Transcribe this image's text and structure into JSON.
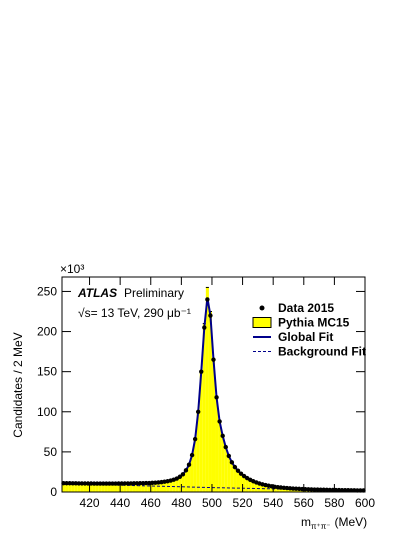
{
  "chart_data": {
    "type": "histogram",
    "y_multiplier": "×10³",
    "experiment": "ATLAS",
    "status": "Preliminary",
    "energy_label": "√s= 13 TeV, 290 μb⁻¹",
    "y_label": "Candidates / 2 MeV",
    "x_label": {
      "main": "m",
      "sub": "π⁺π⁻",
      "unit": "(MeV)"
    },
    "xlim": [
      402,
      600
    ],
    "ylim": [
      0,
      268
    ],
    "xticks": [
      420,
      440,
      460,
      480,
      500,
      520,
      540,
      560,
      580,
      600
    ],
    "yticks": [
      0,
      50,
      100,
      150,
      200,
      250
    ],
    "x": [
      403,
      405,
      407,
      409,
      411,
      413,
      415,
      417,
      419,
      421,
      423,
      425,
      427,
      429,
      431,
      433,
      435,
      437,
      439,
      441,
      443,
      445,
      447,
      449,
      451,
      453,
      455,
      457,
      459,
      461,
      463,
      465,
      467,
      469,
      471,
      473,
      475,
      477,
      479,
      481,
      483,
      485,
      487,
      489,
      491,
      493,
      495,
      497,
      499,
      501,
      503,
      505,
      507,
      509,
      511,
      513,
      515,
      517,
      519,
      521,
      523,
      525,
      527,
      529,
      531,
      533,
      535,
      537,
      539,
      541,
      543,
      545,
      547,
      549,
      551,
      553,
      555,
      557,
      559,
      561,
      563,
      565,
      567,
      569,
      571,
      573,
      575,
      577,
      579,
      581,
      583,
      585,
      587,
      589,
      591,
      593,
      595,
      597,
      599
    ],
    "series": [
      {
        "name": "Data 2015",
        "kind": "points",
        "color": "#000000",
        "values": [
          11.0,
          10.9,
          10.9,
          10.8,
          10.8,
          10.7,
          10.7,
          10.6,
          10.6,
          10.6,
          10.5,
          10.5,
          10.5,
          10.5,
          10.5,
          10.5,
          10.5,
          10.5,
          10.6,
          10.6,
          10.6,
          10.7,
          10.7,
          10.8,
          10.8,
          10.9,
          11.0,
          11.1,
          11.2,
          11.4,
          11.6,
          11.9,
          12.3,
          12.8,
          13.4,
          14.2,
          15.3,
          16.8,
          19.0,
          22,
          27,
          34,
          46,
          66,
          100,
          150,
          205,
          240,
          220,
          165,
          118,
          88,
          70,
          56,
          45,
          37,
          31,
          26.5,
          22.8,
          19.8,
          17.3,
          15.2,
          13.4,
          11.9,
          10.6,
          9.5,
          8.6,
          7.8,
          7.1,
          6.5,
          6.0,
          5.6,
          5.2,
          4.9,
          4.6,
          4.3,
          4.1,
          3.9,
          3.7,
          3.5,
          3.4,
          3.2,
          3.1,
          3.0,
          2.9,
          2.8,
          2.7,
          2.6,
          2.5,
          2.4,
          2.4,
          2.3,
          2.2,
          2.2,
          2.1,
          2.1,
          2.0,
          2.0,
          1.9
        ]
      },
      {
        "name": "Pythia MC15",
        "kind": "hist",
        "color": "#ffff00",
        "values": [
          11.0,
          10.9,
          10.9,
          10.8,
          10.8,
          10.7,
          10.7,
          10.6,
          10.6,
          10.6,
          10.5,
          10.5,
          10.5,
          10.5,
          10.5,
          10.5,
          10.5,
          10.5,
          10.6,
          10.6,
          10.6,
          10.7,
          10.7,
          10.8,
          10.8,
          10.9,
          11.0,
          11.1,
          11.2,
          11.4,
          11.6,
          11.9,
          12.3,
          12.8,
          13.4,
          14.2,
          15.3,
          16.8,
          19.0,
          22,
          27,
          34,
          46,
          66,
          100,
          150,
          210,
          255,
          225,
          165,
          118,
          88,
          70,
          56,
          45,
          37,
          31,
          26.5,
          22.8,
          19.8,
          17.3,
          15.2,
          13.4,
          11.9,
          10.6,
          9.5,
          8.6,
          7.8,
          7.1,
          6.5,
          6.0,
          5.6,
          5.2,
          4.9,
          4.6,
          4.3,
          4.1,
          3.9,
          3.7,
          3.5,
          3.4,
          3.2,
          3.1,
          3.0,
          2.9,
          2.8,
          2.7,
          2.6,
          2.5,
          2.4,
          2.4,
          2.3,
          2.2,
          2.2,
          2.1,
          2.1,
          2.0,
          2.0,
          1.9
        ]
      },
      {
        "name": "Global Fit",
        "kind": "line",
        "color": "#00008b",
        "values": [
          11.0,
          10.9,
          10.9,
          10.8,
          10.8,
          10.7,
          10.7,
          10.6,
          10.6,
          10.6,
          10.5,
          10.5,
          10.5,
          10.5,
          10.5,
          10.5,
          10.5,
          10.5,
          10.6,
          10.6,
          10.6,
          10.7,
          10.7,
          10.8,
          10.8,
          10.9,
          11.0,
          11.1,
          11.2,
          11.4,
          11.6,
          11.9,
          12.3,
          12.8,
          13.4,
          14.2,
          15.3,
          16.8,
          19.0,
          22,
          27,
          34,
          46,
          66,
          100,
          150,
          205,
          242,
          220,
          165,
          118,
          88,
          70,
          56,
          45,
          37,
          31,
          26.5,
          22.8,
          19.8,
          17.3,
          15.2,
          13.4,
          11.9,
          10.6,
          9.5,
          8.6,
          7.8,
          7.1,
          6.5,
          6.0,
          5.6,
          5.2,
          4.9,
          4.6,
          4.3,
          4.1,
          3.9,
          3.7,
          3.5,
          3.4,
          3.2,
          3.1,
          3.0,
          2.9,
          2.8,
          2.7,
          2.6,
          2.5,
          2.4,
          2.4,
          2.3,
          2.2,
          2.2,
          2.1,
          2.1,
          2.0,
          2.0,
          1.9
        ]
      },
      {
        "name": "Background Fit",
        "kind": "dashed",
        "color": "#00008b",
        "x": [
          402,
          450,
          500,
          550,
          600
        ],
        "values": [
          10.5,
          8,
          5.5,
          3.5,
          2
        ]
      }
    ]
  }
}
